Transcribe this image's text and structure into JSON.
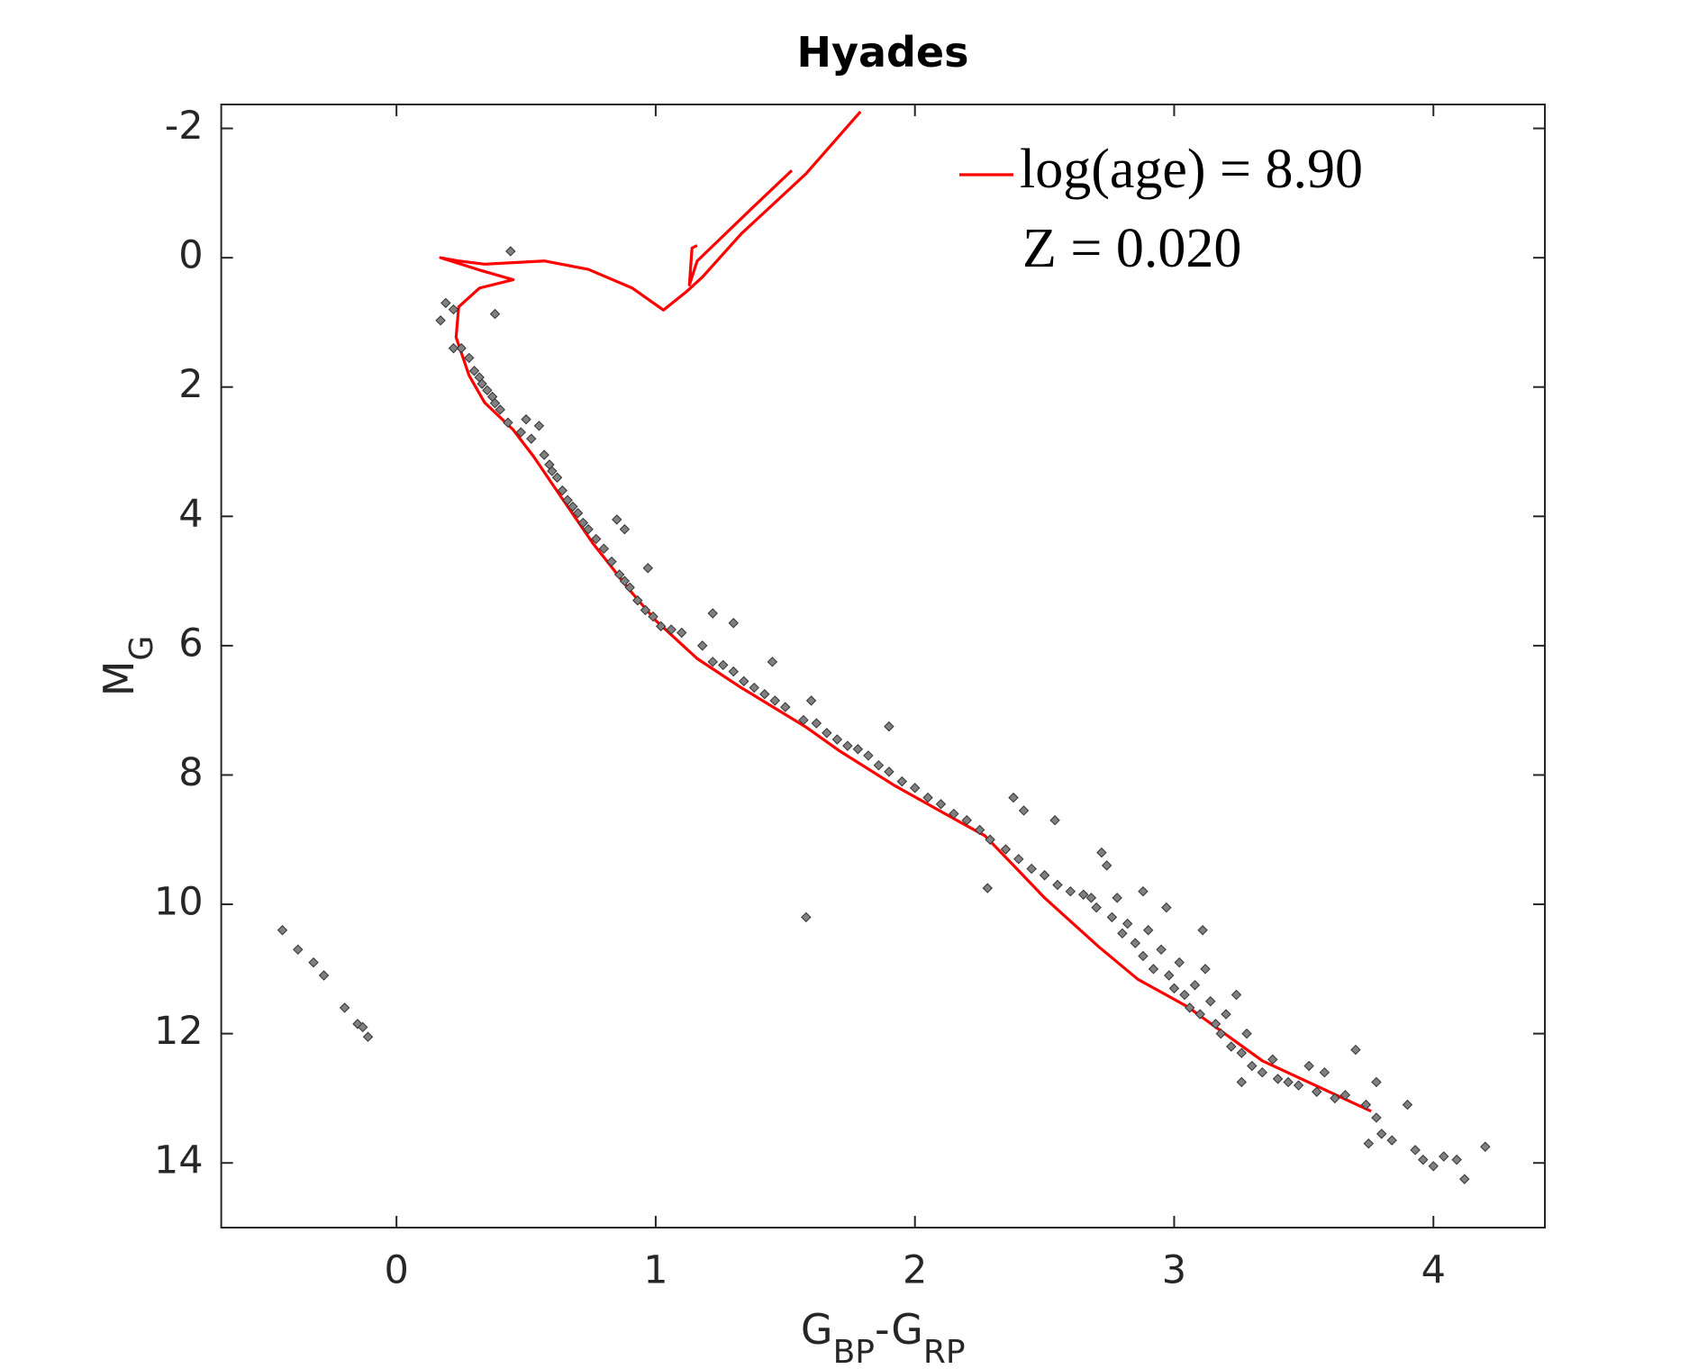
{
  "chart_data": {
    "type": "scatter",
    "title": "Hyades",
    "xlabel": [
      {
        "text": "G"
      },
      {
        "text": "BP",
        "sub": true
      },
      {
        "text": "-G"
      },
      {
        "text": "RP",
        "sub": true
      }
    ],
    "ylabel": [
      {
        "text": "M"
      },
      {
        "text": "G",
        "sub": true
      }
    ],
    "xlim": [
      -0.676,
      4.43
    ],
    "ylim": [
      -2.37,
      15
    ],
    "y_inverted": true,
    "xticks": [
      0,
      1,
      2,
      3,
      4
    ],
    "yticks": [
      -2,
      0,
      2,
      4,
      6,
      8,
      10,
      12,
      14
    ],
    "legend": "upper right",
    "annotations": [
      "Z = 0.020"
    ],
    "series": [
      {
        "name": "log(age) = 8.90",
        "type": "line",
        "color": "#ff0000",
        "x": [
          3.76,
          3.34,
          3.05,
          2.86,
          2.71,
          2.5,
          2.4,
          2.27,
          2.17,
          1.92,
          1.71,
          1.58,
          1.33,
          1.16,
          1.0,
          0.91,
          0.76,
          0.63,
          0.53,
          0.45,
          0.34,
          0.28,
          0.23,
          0.24,
          0.32,
          0.45,
          0.32,
          0.17,
          0.24,
          0.34,
          0.57,
          0.74,
          0.91,
          1.03,
          1.12,
          1.18,
          1.33,
          1.58,
          1.79,
          null,
          1.525,
          1.37,
          1.16,
          1.13,
          1.14,
          1.16
        ],
        "y": [
          13.2,
          12.42,
          11.58,
          11.16,
          10.66,
          9.9,
          9.48,
          8.94,
          8.72,
          8.16,
          7.63,
          7.26,
          6.65,
          6.2,
          5.61,
          5.19,
          4.43,
          3.67,
          3.08,
          2.66,
          2.24,
          1.82,
          1.23,
          0.76,
          0.47,
          0.34,
          0.19,
          0.0,
          0.05,
          0.1,
          0.05,
          0.18,
          0.47,
          0.81,
          0.52,
          0.3,
          -0.37,
          -1.3,
          -2.26,
          null,
          -1.35,
          -0.76,
          0.05,
          0.42,
          -0.15,
          -0.19
        ]
      },
      {
        "type": "scatter",
        "color": "#808080",
        "x": [
          0.44,
          0.17,
          0.19,
          0.22,
          0.38,
          0.25,
          0.22,
          0.28,
          0.3,
          0.32,
          0.33,
          0.35,
          0.37,
          0.38,
          0.4,
          0.43,
          0.5,
          0.55,
          0.48,
          0.52,
          0.57,
          0.59,
          0.6,
          0.62,
          0.64,
          0.66,
          0.68,
          0.7,
          0.72,
          0.74,
          0.77,
          0.8,
          0.85,
          0.88,
          0.83,
          0.86,
          0.88,
          0.9,
          0.97,
          0.93,
          0.96,
          0.99,
          1.02,
          1.06,
          1.1,
          1.22,
          1.3,
          1.18,
          1.22,
          1.26,
          1.3,
          1.34,
          1.38,
          1.42,
          1.45,
          1.46,
          1.5,
          1.6,
          1.57,
          1.62,
          1.66,
          1.7,
          1.74,
          1.78,
          1.82,
          1.86,
          1.9,
          1.9,
          1.95,
          2.0,
          2.05,
          2.1,
          2.15,
          2.2,
          2.25,
          2.29,
          2.28,
          2.38,
          2.42,
          2.54,
          2.35,
          2.4,
          2.45,
          2.5,
          2.55,
          2.6,
          2.65,
          2.68,
          2.7,
          2.72,
          2.74,
          2.76,
          2.78,
          2.8,
          2.82,
          2.85,
          2.88,
          2.88,
          2.9,
          2.92,
          2.95,
          2.97,
          2.98,
          3.0,
          3.02,
          3.04,
          3.06,
          3.08,
          3.1,
          3.12,
          3.11,
          3.14,
          3.16,
          3.18,
          3.2,
          3.22,
          3.24,
          3.26,
          3.28,
          3.3,
          3.34,
          3.38,
          3.4,
          3.44,
          3.48,
          3.52,
          3.55,
          3.58,
          3.62,
          3.66,
          3.7,
          3.74,
          3.78,
          3.78,
          3.84,
          3.9,
          3.93,
          3.96,
          4.0,
          4.04,
          4.12,
          4.2,
          4.09,
          3.75,
          3.8,
          1.58,
          3.26,
          -0.44,
          -0.38,
          -0.32,
          -0.28,
          -0.2,
          -0.15,
          -0.13,
          -0.11
        ],
        "y": [
          -0.1,
          0.97,
          0.7,
          0.8,
          0.87,
          1.4,
          1.4,
          1.55,
          1.75,
          1.85,
          1.95,
          2.05,
          2.15,
          2.25,
          2.35,
          2.55,
          2.5,
          2.6,
          2.7,
          2.8,
          3.05,
          3.2,
          3.3,
          3.4,
          3.6,
          3.75,
          3.85,
          3.95,
          4.1,
          4.2,
          4.35,
          4.5,
          4.05,
          4.2,
          4.7,
          4.9,
          5.0,
          5.1,
          4.8,
          5.3,
          5.45,
          5.55,
          5.7,
          5.75,
          5.8,
          5.5,
          5.65,
          6.0,
          6.25,
          6.3,
          6.4,
          6.55,
          6.65,
          6.75,
          6.25,
          6.85,
          6.95,
          6.85,
          7.15,
          7.2,
          7.35,
          7.45,
          7.55,
          7.6,
          7.7,
          7.85,
          7.95,
          7.25,
          8.1,
          8.2,
          8.35,
          8.45,
          8.6,
          8.7,
          8.85,
          9.0,
          9.75,
          8.35,
          8.55,
          8.7,
          9.15,
          9.3,
          9.45,
          9.55,
          9.7,
          9.8,
          9.85,
          9.9,
          10.05,
          9.2,
          9.4,
          10.2,
          9.9,
          10.45,
          10.3,
          10.6,
          9.8,
          10.8,
          10.4,
          11.0,
          10.7,
          10.05,
          11.1,
          11.3,
          10.9,
          11.4,
          11.6,
          11.25,
          11.7,
          11.0,
          10.4,
          11.5,
          11.85,
          12.0,
          11.7,
          12.2,
          11.4,
          12.3,
          12.0,
          12.5,
          12.6,
          12.4,
          12.7,
          12.75,
          12.8,
          12.5,
          12.9,
          12.6,
          13.0,
          12.95,
          12.25,
          13.1,
          13.3,
          12.75,
          13.65,
          13.1,
          13.8,
          13.95,
          14.05,
          13.9,
          14.25,
          13.75,
          13.95,
          13.7,
          13.55,
          10.2,
          12.75,
          10.4,
          10.7,
          10.9,
          11.1,
          11.6,
          11.85,
          11.9,
          12.05
        ]
      }
    ]
  }
}
